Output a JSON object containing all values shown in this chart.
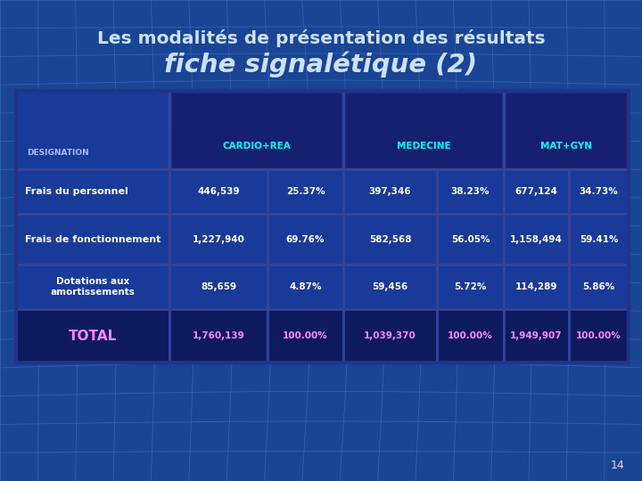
{
  "title_line1": "Les modalités de présentation des résultats",
  "title_line2": "fiche signalétique (2)",
  "bg_color": "#1a4494",
  "grid_color": "#4477cc",
  "slide_number": "14",
  "col_headers": [
    "CARDIO+REA",
    "MEDECINE",
    "MAT+GYN"
  ],
  "rows": [
    {
      "label": "Frais du personnel",
      "values": [
        "446,539",
        "25.37%",
        "397,346",
        "38.23%",
        "677,124",
        "34.73%"
      ],
      "label_style": "bold",
      "value_color": "#ffffff"
    },
    {
      "label": "Frais de fonctionnement",
      "values": [
        "1,227,940",
        "69.76%",
        "582,568",
        "56.05%",
        "1,158,494",
        "59.41%"
      ],
      "label_style": "bold",
      "value_color": "#ffffff"
    },
    {
      "label": "Dotations aux\namortissements",
      "values": [
        "85,659",
        "4.87%",
        "59,456",
        "5.72%",
        "114,289",
        "5.86%"
      ],
      "label_style": "normal",
      "value_color": "#ffffff"
    },
    {
      "label": "TOTAL",
      "values": [
        "1,760,139",
        "100.00%",
        "1,039,370",
        "100.00%",
        "1,949,907",
        "100.00%"
      ],
      "label_style": "total",
      "value_color": "#ff88ff"
    }
  ],
  "title_color1": "#cce0ff",
  "title_color2": "#cce0ff",
  "header_text_color": "#00ffee",
  "designation_text_color": "#aabbff",
  "table_bg": "#1a3a99",
  "table_border_color": "#223388",
  "total_label_color": "#ff88ff",
  "total_value_color": "#ff88ff"
}
